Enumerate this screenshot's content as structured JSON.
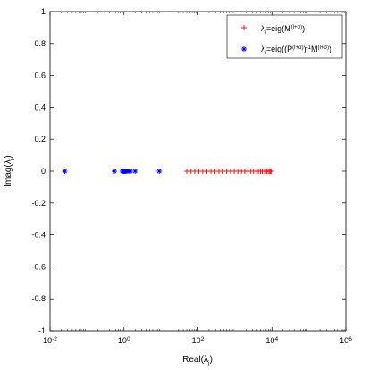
{
  "chart_data": {
    "type": "scatter",
    "title": "",
    "xlabel": "Real(λi)",
    "ylabel": "Imag(λi)",
    "xscale": "log",
    "xlim": [
      0.01,
      1000000
    ],
    "ylim": [
      -1,
      1
    ],
    "x_ticks": [
      {
        "value": 0.01,
        "base": "10",
        "exp": "-2"
      },
      {
        "value": 1,
        "base": "10",
        "exp": "0"
      },
      {
        "value": 100,
        "base": "10",
        "exp": "2"
      },
      {
        "value": 10000,
        "base": "10",
        "exp": "4"
      },
      {
        "value": 1000000,
        "base": "10",
        "exp": "6"
      }
    ],
    "y_ticks": [
      "-1",
      "-0.8",
      "-0.6",
      "-0.4",
      "-0.2",
      "0",
      "0.2",
      "0.4",
      "0.6",
      "0.8",
      "1"
    ],
    "grid": false,
    "legend_position": "top-right",
    "series": [
      {
        "name": "λi=eig(M(l+σ))",
        "legend": {
          "lambda": "λ",
          "sub": "i",
          "mid": "=eig(M",
          "sup": "(l+σ)",
          "end": ")"
        },
        "marker": "plus",
        "color": "#ff0000",
        "x": [
          50,
          65,
          82,
          105,
          135,
          175,
          225,
          290,
          370,
          470,
          600,
          760,
          960,
          1200,
          1500,
          1850,
          2250,
          2700,
          3200,
          3750,
          4300,
          4900,
          5500,
          6100,
          6700,
          7300,
          7900,
          8500,
          9100,
          9700
        ],
        "y": [
          0,
          0,
          0,
          0,
          0,
          0,
          0,
          0,
          0,
          0,
          0,
          0,
          0,
          0,
          0,
          0,
          0,
          0,
          0,
          0,
          0,
          0,
          0,
          0,
          0,
          0,
          0,
          0,
          0,
          0
        ]
      },
      {
        "name": "λi=eig((P(l+σ))-1M(l+σ))",
        "legend": {
          "lambda": "λ",
          "sub": "i",
          "p1": "=eig((P",
          "sup1": "(l+σ)",
          "p2": ")",
          "sup2": "-1",
          "p3": "M",
          "sup3": "(l+σ)",
          "p4": ")"
        },
        "marker": "asterisk",
        "color": "#0000ff",
        "x": [
          0.025,
          0.55,
          0.9,
          0.95,
          1.0,
          1.05,
          1.1,
          1.2,
          1.35,
          1.5,
          2.0,
          9.0
        ],
        "y": [
          0,
          0,
          0,
          0,
          0,
          0,
          0,
          0,
          0,
          0,
          0,
          0
        ]
      }
    ]
  }
}
